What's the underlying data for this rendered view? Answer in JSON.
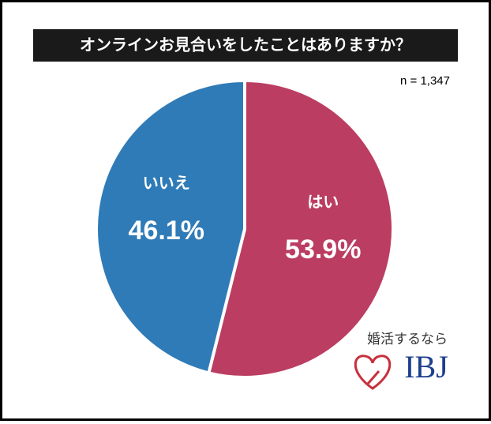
{
  "chart_data": {
    "type": "pie",
    "title": "オンラインお見合いをしたことはありますか？",
    "note": "n = 1,347",
    "categories": [
      "はい",
      "いいえ"
    ],
    "values": [
      53.9,
      46.1
    ],
    "value_labels": [
      "53.9%",
      "46.1%"
    ],
    "colors": [
      "#bb3d61",
      "#2f7bb7"
    ],
    "start": "top",
    "direction": "clockwise"
  },
  "logo": {
    "tagline": "婚活するなら",
    "name": "IBJ"
  }
}
